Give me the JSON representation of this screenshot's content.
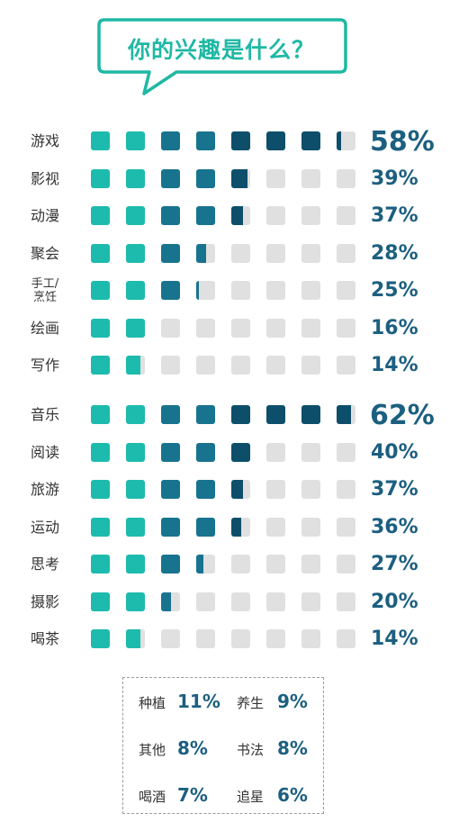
{
  "title": "你的兴趣是什么？",
  "colors": {
    "teal": "#1dbbad",
    "blue": "#18738f",
    "navy": "#0d4f6b",
    "empty": "#e0e0e0",
    "title": "#1fb8a4",
    "percent": "#1c5f80"
  },
  "chart_data": {
    "type": "bar",
    "groups": [
      {
        "categories": [
          "游戏",
          "影视",
          "动漫",
          "聚会",
          "手工/烹饪",
          "绘画",
          "写作"
        ],
        "values": [
          58,
          39,
          37,
          28,
          25,
          16,
          14
        ],
        "value_labels": [
          "58%",
          "39%",
          "37%",
          "28%",
          "25%",
          "16%",
          "14%"
        ]
      },
      {
        "categories": [
          "音乐",
          "阅读",
          "旅游",
          "运动",
          "思考",
          "摄影",
          "喝茶"
        ],
        "values": [
          62,
          40,
          37,
          36,
          27,
          20,
          14
        ],
        "value_labels": [
          "62%",
          "40%",
          "37%",
          "36%",
          "27%",
          "20%",
          "14%"
        ]
      }
    ],
    "scale": "each square = 8% (8 squares)",
    "ylim": [
      0,
      64
    ]
  },
  "others": [
    {
      "label": "种植",
      "value": "11%"
    },
    {
      "label": "养生",
      "value": "9%"
    },
    {
      "label": "其他",
      "value": "8%"
    },
    {
      "label": "书法",
      "value": "8%"
    },
    {
      "label": "喝酒",
      "value": "7%"
    },
    {
      "label": "追星",
      "value": "6%"
    }
  ]
}
